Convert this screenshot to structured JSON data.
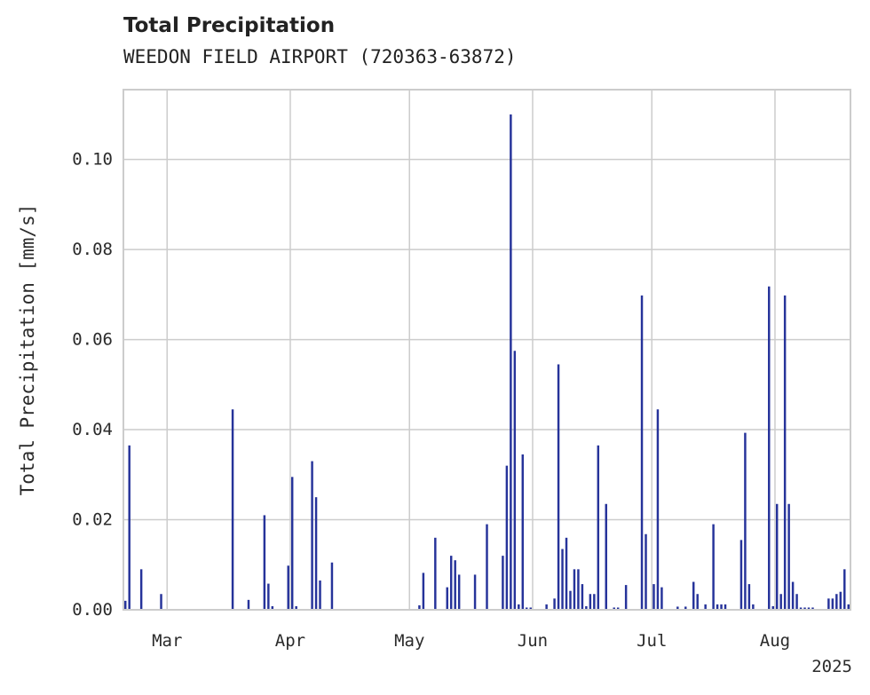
{
  "header": {
    "title": "Total Precipitation",
    "subtitle": "WEEDON FIELD AIRPORT (720363-63872)"
  },
  "chart_data": {
    "type": "bar",
    "title": "Total Precipitation",
    "subtitle": "WEEDON FIELD AIRPORT (720363-63872)",
    "xlabel": "",
    "ylabel": "Total Precipitation [mm/s]",
    "x_type": "date",
    "xlim": [
      "2025-02-18",
      "2025-08-20"
    ],
    "ylim": [
      0,
      0.1155
    ],
    "yticks": [
      0.0,
      0.02,
      0.04,
      0.06,
      0.08,
      0.1
    ],
    "ytick_labels": [
      "0.00",
      "0.02",
      "0.04",
      "0.06",
      "0.08",
      "0.10"
    ],
    "xticks": [
      "2025-03-01",
      "2025-04-01",
      "2025-05-01",
      "2025-06-01",
      "2025-07-01",
      "2025-08-01"
    ],
    "xtick_labels": [
      "Mar",
      "Apr",
      "May",
      "Jun",
      "Jul",
      "Aug"
    ],
    "x_offset_label": "2025",
    "grid": true,
    "bar_color": "#26339a",
    "series": [
      {
        "x": [
          "2025-02-18",
          "2025-02-19",
          "2025-02-22",
          "2025-02-27",
          "2025-03-17",
          "2025-03-21",
          "2025-03-25",
          "2025-03-26",
          "2025-03-27",
          "2025-03-31",
          "2025-04-01",
          "2025-04-02",
          "2025-04-06",
          "2025-04-07",
          "2025-04-08",
          "2025-04-11",
          "2025-05-03",
          "2025-05-04",
          "2025-05-07",
          "2025-05-10",
          "2025-05-11",
          "2025-05-12",
          "2025-05-13",
          "2025-05-17",
          "2025-05-20",
          "2025-05-24",
          "2025-05-25",
          "2025-05-26",
          "2025-05-27",
          "2025-05-28",
          "2025-05-29",
          "2025-05-30",
          "2025-05-31",
          "2025-06-04",
          "2025-06-06",
          "2025-06-07",
          "2025-06-08",
          "2025-06-09",
          "2025-06-10",
          "2025-06-11",
          "2025-06-12",
          "2025-06-13",
          "2025-06-14",
          "2025-06-15",
          "2025-06-16",
          "2025-06-17",
          "2025-06-19",
          "2025-06-21",
          "2025-06-22",
          "2025-06-24",
          "2025-06-28",
          "2025-06-29",
          "2025-07-01",
          "2025-07-02",
          "2025-07-03",
          "2025-07-07",
          "2025-07-09",
          "2025-07-11",
          "2025-07-12",
          "2025-07-14",
          "2025-07-16",
          "2025-07-17",
          "2025-07-18",
          "2025-07-19",
          "2025-07-23",
          "2025-07-24",
          "2025-07-25",
          "2025-07-26",
          "2025-07-30",
          "2025-07-31",
          "2025-08-01",
          "2025-08-02",
          "2025-08-03",
          "2025-08-04",
          "2025-08-05",
          "2025-08-06",
          "2025-08-07",
          "2025-08-08",
          "2025-08-09",
          "2025-08-10",
          "2025-08-14",
          "2025-08-15",
          "2025-08-16",
          "2025-08-17",
          "2025-08-18",
          "2025-08-19"
        ],
        "values": [
          0.002,
          0.0365,
          0.009,
          0.0035,
          0.0445,
          0.0022,
          0.021,
          0.0058,
          0.0008,
          0.0098,
          0.0295,
          0.0008,
          0.033,
          0.025,
          0.0065,
          0.0105,
          0.001,
          0.0082,
          0.016,
          0.005,
          0.012,
          0.011,
          0.0078,
          0.0078,
          0.019,
          0.012,
          0.032,
          0.11,
          0.0575,
          0.0012,
          0.0345,
          0.0005,
          0.0005,
          0.0012,
          0.0025,
          0.0545,
          0.0135,
          0.016,
          0.0042,
          0.009,
          0.009,
          0.0057,
          0.0008,
          0.0035,
          0.0035,
          0.0365,
          0.0235,
          0.0005,
          0.0005,
          0.0055,
          0.0698,
          0.0168,
          0.0057,
          0.0445,
          0.005,
          0.0007,
          0.0007,
          0.0062,
          0.0035,
          0.0012,
          0.019,
          0.0012,
          0.0012,
          0.0012,
          0.0155,
          0.0393,
          0.0057,
          0.0012,
          0.0718,
          0.0008,
          0.0235,
          0.0035,
          0.0698,
          0.0235,
          0.0062,
          0.0035,
          0.0005,
          0.0005,
          0.0005,
          0.0005,
          0.0025,
          0.0025,
          0.0035,
          0.004,
          0.009,
          0.0012
        ]
      }
    ]
  }
}
